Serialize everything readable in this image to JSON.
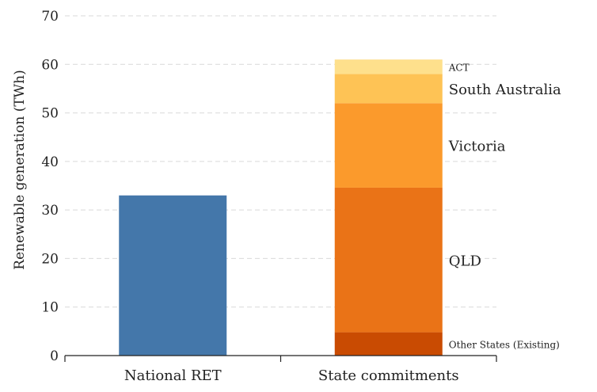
{
  "chart_data": {
    "type": "bar",
    "title": "",
    "xlabel": "",
    "ylabel": "Renewable generation (TWh)",
    "ylim": [
      0,
      70
    ],
    "yticks": [
      0,
      10,
      20,
      30,
      40,
      50,
      60,
      70
    ],
    "grid": "horizontal dashed",
    "categories": [
      "National RET",
      "State commitments"
    ],
    "bars": [
      {
        "category": "National RET",
        "segments": [
          {
            "name": "",
            "value": 33,
            "color": "#4477aa"
          }
        ]
      },
      {
        "category": "State commitments",
        "segments": [
          {
            "name": "Other States (Existing)",
            "value": 4.8,
            "color": "#c94b02"
          },
          {
            "name": "QLD",
            "value": 29.8,
            "color": "#ea7317"
          },
          {
            "name": "Victoria",
            "value": 17.4,
            "color": "#fb9a2c"
          },
          {
            "name": "South Australia",
            "value": 6.0,
            "color": "#fec355"
          },
          {
            "name": "ACT",
            "value": 3.0,
            "color": "#fee08c"
          }
        ]
      }
    ]
  }
}
